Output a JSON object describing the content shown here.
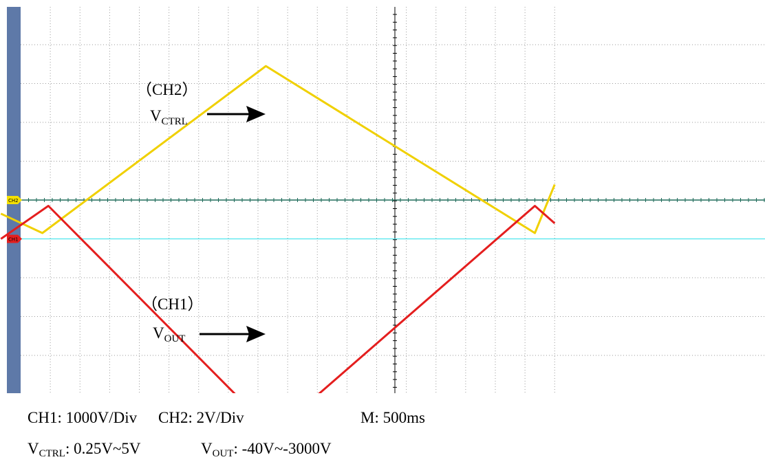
{
  "chart_data": {
    "type": "line",
    "title": "",
    "xlabel": "",
    "ylabel": "",
    "grid": true,
    "x_divisions": 14,
    "y_divisions": 10,
    "series": [
      {
        "name": "(CH2) V_CTRL",
        "channel": "CH2",
        "color": "#f0d000",
        "x_div": [
          -0.5,
          0.55,
          6.2,
          13.0,
          13.5
        ],
        "y_div": [
          -0.35,
          -0.85,
          3.45,
          -0.85,
          0.4
        ],
        "marker_y_div": 0,
        "marker_color": "#f5e000",
        "marker_label": "CH2"
      },
      {
        "name": "(CH1) V_OUT",
        "channel": "CH1",
        "color": "#e41e1e",
        "x_div": [
          -0.5,
          0.7,
          6.4,
          13.0,
          13.5
        ],
        "y_div": [
          -1.0,
          -0.15,
          -6.0,
          -0.15,
          -0.6
        ],
        "marker_y_div": -1,
        "marker_color": "#e41e1e",
        "marker_label": "CH1"
      }
    ],
    "reference_line": {
      "y_div": -1,
      "color": "#4ee6ee"
    }
  },
  "annotations": {
    "ch2_label": "（CH2）",
    "vctrl_main": "V",
    "vctrl_sub": "CTRL",
    "ch1_label": "（CH1）",
    "vout_main": "V",
    "vout_sub": "OUT"
  },
  "settings": {
    "ch1_scale": "CH1: 1000V/Div",
    "ch2_scale": "CH2: 2V/Div",
    "timebase": "M: 500ms",
    "vctrl_main": "V",
    "vctrl_sub": "CTRL",
    "vctrl_range": ": 0.25V~5V",
    "vout_main": "V",
    "vout_sub": "OUT",
    "vout_range": ": -40V~-3000V"
  }
}
